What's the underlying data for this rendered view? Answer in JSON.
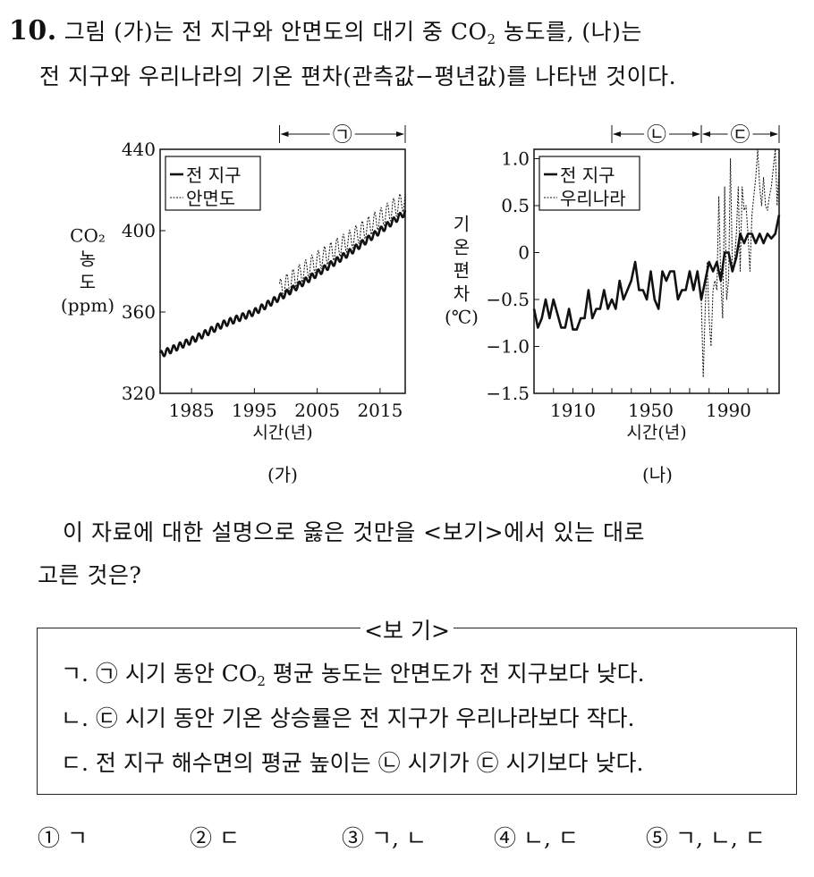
{
  "question": {
    "number": "10.",
    "line1_a": "그림 (가)는 전 지구와 안면도의 대기 중 CO",
    "line1_sub": "2",
    "line1_b": " 농도를, (나)는",
    "line2": "전 지구와 우리나라의 기온 편차(관측값−평년값)를 나타낸 것이다.",
    "prompt_line1": "이 자료에 대한 설명으로 옳은 것만을 <보기>에서 있는 대로",
    "prompt_line2": "고른 것은?"
  },
  "bogi": {
    "title": "<보 기>",
    "items": [
      {
        "parts": [
          "ㄱ. ",
          "㉠",
          " 시기 동안 CO",
          "2",
          " 평균 농도는 안면도가 전 지구보다 낮다."
        ]
      },
      {
        "parts": [
          "ㄴ. ",
          "㉢",
          " 시기 동안 기온 상승률은 전 지구가 우리나라보다 작다."
        ]
      },
      {
        "parts": [
          "ㄷ. 전 지구 해수면의 평균 높이는 ",
          "㉡",
          " 시기가 ",
          "㉢",
          " 시기보다 낮다."
        ]
      }
    ]
  },
  "options": [
    "① ㄱ",
    "② ㄷ",
    "③ ㄱ, ㄴ",
    "④ ㄴ, ㄷ",
    "⑤ ㄱ, ㄴ, ㄷ"
  ],
  "chart_data": [
    {
      "type": "line",
      "caption": "(가)",
      "ylabel_lines": [
        "CO₂",
        "농",
        "도",
        "(ppm)"
      ],
      "xlabel": "시간(년)",
      "xlim": [
        1980,
        2019
      ],
      "ylim": [
        320,
        440
      ],
      "xticks": [
        1985,
        1995,
        2005,
        2015
      ],
      "yticks": [
        320,
        360,
        400,
        440
      ],
      "legend": {
        "placement": "top-left",
        "entries": [
          "전 지구",
          "안면도"
        ]
      },
      "period": {
        "label": "㉠",
        "range": [
          1999,
          2019
        ]
      },
      "seasonal_amplitude_ppm": [
        1.6,
        5
      ],
      "series": [
        {
          "name": "전 지구",
          "style": "solid-thick",
          "x": [
            1980,
            1985,
            1990,
            1995,
            2000,
            2005,
            2010,
            2015,
            2019
          ],
          "y": [
            339,
            346,
            354,
            360,
            369,
            379,
            389,
            400,
            409
          ]
        },
        {
          "name": "안면도",
          "style": "dotted",
          "x": [
            1999,
            2005,
            2010,
            2015,
            2019
          ],
          "y": [
            371,
            385,
            395,
            406,
            415
          ]
        }
      ]
    },
    {
      "type": "line",
      "caption": "(나)",
      "ylabel_lines": [
        "기",
        "온",
        "편",
        "차",
        "(℃)"
      ],
      "xlabel": "시간(년)",
      "xlim": [
        1890,
        2016
      ],
      "ylim": [
        -1.5,
        1.1
      ],
      "xticks": [
        1900,
        1910,
        1920,
        1930,
        1940,
        1950,
        1960,
        1970,
        1980,
        1990,
        2000,
        2010
      ],
      "xticklabels": [
        1910,
        1950,
        1990
      ],
      "yticks": [
        -1.5,
        -1.0,
        -0.5,
        0,
        0.5,
        1.0
      ],
      "yticklabels": [
        "−1.5",
        "−1.0",
        "−0.5",
        "0",
        "0.5",
        "1.0"
      ],
      "legend": {
        "placement": "top-left",
        "entries": [
          "전 지구",
          "우리나라"
        ]
      },
      "periods": [
        {
          "label": "㉡",
          "range": [
            1930,
            1976
          ]
        },
        {
          "label": "㉢",
          "range": [
            1976,
            2016
          ]
        }
      ],
      "series": [
        {
          "name": "전 지구",
          "style": "solid-thick",
          "x": [
            1890,
            1892,
            1894,
            1896,
            1898,
            1900,
            1902,
            1904,
            1906,
            1908,
            1910,
            1912,
            1914,
            1916,
            1918,
            1920,
            1922,
            1924,
            1926,
            1928,
            1930,
            1932,
            1934,
            1936,
            1938,
            1940,
            1942,
            1944,
            1946,
            1948,
            1950,
            1952,
            1954,
            1956,
            1958,
            1960,
            1962,
            1964,
            1966,
            1968,
            1970,
            1972,
            1974,
            1976,
            1978,
            1980,
            1982,
            1984,
            1986,
            1988,
            1990,
            1992,
            1994,
            1996,
            1998,
            2000,
            2002,
            2004,
            2006,
            2008,
            2010,
            2012,
            2014,
            2016
          ],
          "y": [
            -0.6,
            -0.8,
            -0.7,
            -0.5,
            -0.7,
            -0.5,
            -0.65,
            -0.8,
            -0.8,
            -0.6,
            -0.82,
            -0.82,
            -0.7,
            -0.7,
            -0.4,
            -0.7,
            -0.6,
            -0.6,
            -0.4,
            -0.6,
            -0.5,
            -0.6,
            -0.3,
            -0.5,
            -0.4,
            -0.3,
            -0.1,
            -0.4,
            -0.4,
            -0.5,
            -0.2,
            -0.5,
            -0.6,
            -0.2,
            -0.3,
            -0.2,
            -0.2,
            -0.5,
            -0.4,
            -0.4,
            -0.2,
            -0.4,
            -0.2,
            -0.5,
            -0.3,
            -0.1,
            -0.2,
            -0.1,
            -0.3,
            0,
            0,
            -0.2,
            -0.05,
            0.2,
            0.1,
            0.2,
            0.2,
            0.1,
            0.2,
            0.1,
            0.2,
            0.15,
            0.2,
            0.4
          ]
        },
        {
          "name": "우리나라",
          "style": "dotted",
          "x": [
            1976,
            1977,
            1978,
            1979,
            1980,
            1981,
            1982,
            1983,
            1984,
            1985,
            1986,
            1987,
            1988,
            1989,
            1990,
            1991,
            1992,
            1993,
            1994,
            1995,
            1996,
            1997,
            1998,
            1999,
            2000,
            2001,
            2002,
            2003,
            2004,
            2005,
            2006,
            2007,
            2008,
            2009,
            2010,
            2011,
            2012,
            2013,
            2014,
            2015,
            2016
          ],
          "y": [
            -0.5,
            -1.33,
            -0.6,
            -0.1,
            -0.7,
            -1.0,
            -0.4,
            -0.3,
            -0.4,
            0.6,
            -0.3,
            -0.7,
            0.7,
            -0.5,
            -0.3,
            1.0,
            -0.2,
            -0.1,
            0.2,
            0.7,
            -0.2,
            0.7,
            0.45,
            0.5,
            0.2,
            -0.2,
            0.4,
            0.6,
            0.8,
            1.1,
            0.7,
            0.5,
            0.8,
            0.5,
            0.45,
            0.6,
            0.7,
            0.9,
            1.1,
            0.5,
            0.9
          ]
        }
      ]
    }
  ]
}
